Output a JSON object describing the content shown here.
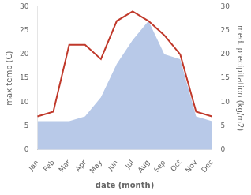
{
  "chart_data": {
    "type": "line",
    "categories": [
      "Jan",
      "Feb",
      "Mar",
      "Apr",
      "May",
      "Jun",
      "Jul",
      "Aug",
      "Sep",
      "Oct",
      "Nov",
      "Dec"
    ],
    "series": [
      {
        "type": "area",
        "color": "#b8c9e8",
        "axis": "y2",
        "values": [
          6,
          6,
          6,
          7,
          11,
          18,
          23,
          27,
          20,
          19,
          7,
          6
        ]
      },
      {
        "type": "line",
        "color": "#c0392b",
        "values": [
          7,
          8,
          22,
          22,
          19,
          27,
          29,
          27,
          24,
          20,
          8,
          7
        ]
      }
    ],
    "xlabel": "date (month)",
    "ylabel": "max temp (C)",
    "y2label": "med. precipitation (kg/m2)",
    "ylim": [
      0,
      30
    ],
    "yticks": [
      0,
      5,
      10,
      15,
      20,
      25,
      30
    ],
    "y2lim": [
      0,
      30
    ],
    "y2ticks": [
      0,
      5,
      10,
      15,
      20,
      25,
      30
    ],
    "grid": false
  }
}
